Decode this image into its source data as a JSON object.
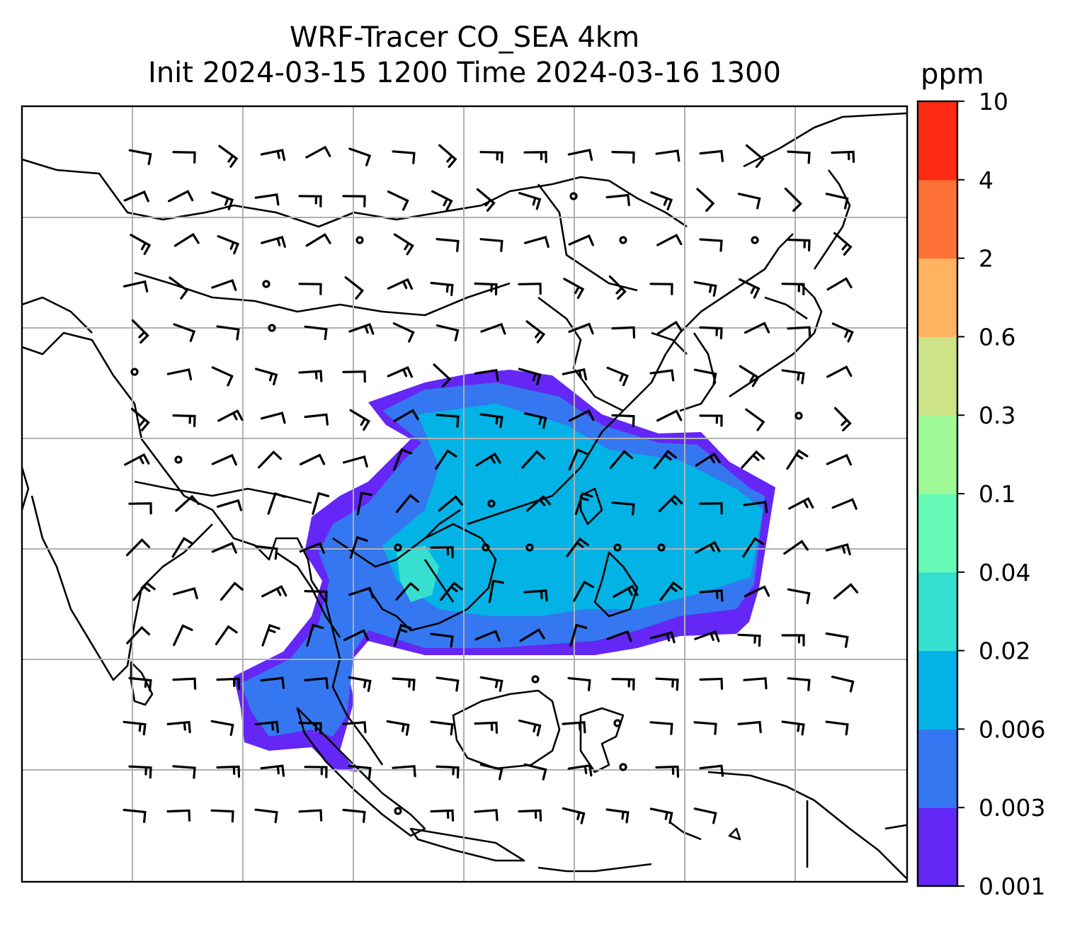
{
  "title": {
    "line1": "WRF-Tracer CO_SEA 4km",
    "line2": "Init 2024-03-15 1200 Time 2024-03-16 1300"
  },
  "colorbar": {
    "unit": "ppm",
    "levels": [
      "0.001",
      "0.003",
      "0.006",
      "0.02",
      "0.04",
      "0.1",
      "0.3",
      "0.6",
      "2",
      "4",
      "10"
    ],
    "colors": [
      "#6427f5",
      "#3577f0",
      "#03b3e6",
      "#36dfd0",
      "#66fbb6",
      "#9ef996",
      "#cee288",
      "#ffb360",
      "#fd7137",
      "#ff2a14"
    ]
  },
  "map": {
    "gridlines": true,
    "coastlines": true,
    "wind_barbs": true,
    "plume_colors": [
      "#6427f5",
      "#3577f0",
      "#03b3e6",
      "#36dfd0"
    ]
  }
}
